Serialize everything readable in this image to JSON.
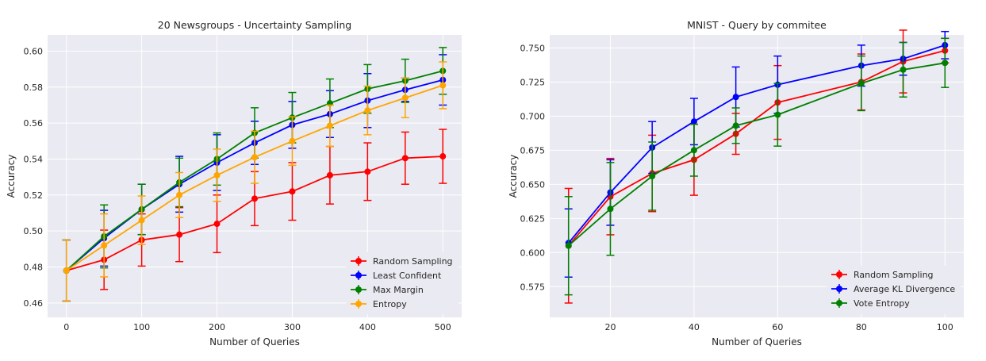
{
  "chart_data": [
    {
      "type": "line",
      "title": "20 Newsgroups - Uncertainty Sampling",
      "xlabel": "Number of Queries",
      "ylabel": "Accuracy",
      "xlim": [
        -25,
        525
      ],
      "ylim": [
        0.452,
        0.609
      ],
      "xticks": [
        0,
        100,
        200,
        300,
        400,
        500
      ],
      "yticks": [
        0.46,
        0.48,
        0.5,
        0.52,
        0.54,
        0.56,
        0.58,
        0.6
      ],
      "ytick_decimals": 2,
      "grid": true,
      "legend_position": "lower-right",
      "x": [
        0,
        50,
        100,
        150,
        200,
        250,
        300,
        350,
        400,
        450,
        500
      ],
      "series": [
        {
          "name": "Random Sampling",
          "color": "#ff0000",
          "values": [
            0.478,
            0.484,
            0.495,
            0.498,
            0.504,
            0.518,
            0.522,
            0.531,
            0.533,
            0.5405,
            0.5415
          ],
          "errors": [
            0.017,
            0.0165,
            0.0145,
            0.015,
            0.016,
            0.015,
            0.016,
            0.016,
            0.016,
            0.0145,
            0.015
          ]
        },
        {
          "name": "Least Confident",
          "color": "#0000ff",
          "values": [
            0.478,
            0.496,
            0.512,
            0.526,
            0.538,
            0.549,
            0.559,
            0.565,
            0.5725,
            0.5785,
            0.584
          ],
          "errors": [
            0.017,
            0.0155,
            0.014,
            0.0155,
            0.0155,
            0.012,
            0.013,
            0.013,
            0.015,
            0.0065,
            0.014
          ]
        },
        {
          "name": "Max Margin",
          "color": "#008000",
          "values": [
            0.478,
            0.497,
            0.512,
            0.527,
            0.54,
            0.5545,
            0.563,
            0.571,
            0.579,
            0.5835,
            0.589
          ],
          "errors": [
            0.017,
            0.0175,
            0.014,
            0.0135,
            0.0145,
            0.014,
            0.014,
            0.0135,
            0.0135,
            0.012,
            0.013
          ]
        },
        {
          "name": "Entropy",
          "color": "#ffa500",
          "values": [
            0.478,
            0.492,
            0.506,
            0.52,
            0.531,
            0.541,
            0.55,
            0.5585,
            0.567,
            0.574,
            0.581
          ],
          "errors": [
            0.017,
            0.0175,
            0.0135,
            0.0125,
            0.0145,
            0.0145,
            0.0135,
            0.0115,
            0.0135,
            0.011,
            0.013
          ]
        }
      ]
    },
    {
      "type": "line",
      "title": "MNIST - Query by commitee",
      "xlabel": "Number of Queries",
      "ylabel": "Accuracy",
      "xlim": [
        5.5,
        104.5
      ],
      "ylim": [
        0.5525,
        0.7595
      ],
      "xticks": [
        20,
        40,
        60,
        80,
        100
      ],
      "yticks": [
        0.575,
        0.6,
        0.625,
        0.65,
        0.675,
        0.7,
        0.725,
        0.75
      ],
      "ytick_decimals": 3,
      "grid": true,
      "legend_position": "lower-right",
      "x": [
        10,
        20,
        30,
        40,
        50,
        60,
        80,
        90,
        100
      ],
      "series": [
        {
          "name": "Random Sampling",
          "color": "#ff0000",
          "values": [
            0.605,
            0.641,
            0.658,
            0.668,
            0.687,
            0.71,
            0.725,
            0.74,
            0.748
          ],
          "errors": [
            0.042,
            0.028,
            0.028,
            0.026,
            0.015,
            0.027,
            0.0205,
            0.023,
            0.009
          ]
        },
        {
          "name": "Average KL Divergence",
          "color": "#0000ff",
          "values": [
            0.607,
            0.644,
            0.677,
            0.696,
            0.714,
            0.723,
            0.737,
            0.742,
            0.752
          ],
          "errors": [
            0.025,
            0.024,
            0.019,
            0.017,
            0.022,
            0.021,
            0.015,
            0.012,
            0.01
          ]
        },
        {
          "name": "Vote Entropy",
          "color": "#008000",
          "values": [
            0.605,
            0.632,
            0.656,
            0.675,
            0.693,
            0.701,
            0.724,
            0.734,
            0.739
          ],
          "errors": [
            0.036,
            0.034,
            0.025,
            0.019,
            0.013,
            0.023,
            0.02,
            0.02,
            0.018
          ]
        }
      ]
    }
  ]
}
